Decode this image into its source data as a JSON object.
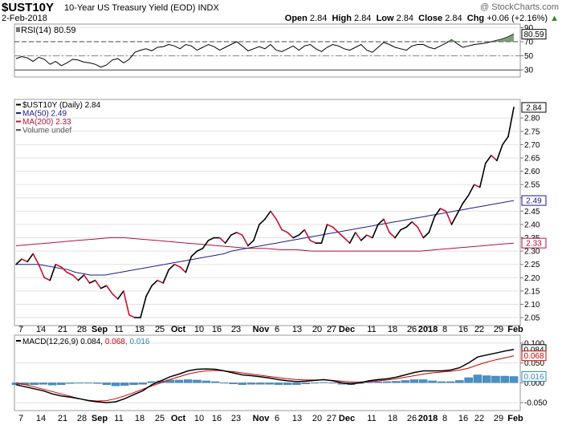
{
  "header": {
    "symbol": "$UST10Y",
    "description": "10-Year US Treasury Yield (EOD)",
    "exchange": "INDX",
    "watermark": "@ StockCharts.com",
    "date": "2-Feb-2018",
    "open_label": "Open",
    "open": "2.84",
    "high_label": "High",
    "high": "2.84",
    "low_label": "Low",
    "low": "2.84",
    "close_label": "Close",
    "close": "2.84",
    "chg_label": "Chg",
    "chg": "+0.06 (+2.16%)",
    "up_icon": "up-triangle-icon"
  },
  "rsi_panel": {
    "label": "RSI(14) 80.59",
    "last_value_box": "80.59",
    "ticks": [
      "90",
      "70",
      "50",
      "30"
    ]
  },
  "price_panel": {
    "legend": [
      {
        "text": "$UST10Y (Daily) 2.84",
        "color": "#000000"
      },
      {
        "text": "MA(50) 2.49",
        "color": "#1c1c8c"
      },
      {
        "text": "MA(200) 2.33",
        "color": "#b0123a"
      },
      {
        "text": "Volume undef",
        "color": "#555555"
      }
    ],
    "value_boxes": [
      {
        "text": "2.84",
        "value": 2.84,
        "color": "#000000"
      },
      {
        "text": "2.49",
        "value": 2.49,
        "color": "#1c1c8c"
      },
      {
        "text": "2.33",
        "value": 2.33,
        "color": "#b0123a"
      }
    ],
    "ticks": [
      "2.80",
      "2.75",
      "2.70",
      "2.65",
      "2.60",
      "2.55",
      "2.50",
      "2.45",
      "2.40",
      "2.35",
      "2.30",
      "2.25",
      "2.20",
      "2.15",
      "2.10",
      "2.05"
    ]
  },
  "macd_panel": {
    "label_prefix": "MACD(12,26,9)",
    "macd": "0.084",
    "signal": "0.068",
    "histogram": "0.016",
    "value_boxes": [
      {
        "text": "0.084",
        "value": 0.084,
        "color": "#000000"
      },
      {
        "text": "0.068",
        "value": 0.068,
        "color": "#cc0000"
      },
      {
        "text": "0.016",
        "value": 0.016,
        "color": "#2f86c0"
      }
    ],
    "ticks": [
      "0.100",
      "0.050",
      "0.000",
      "-0.050"
    ]
  },
  "x_axis": {
    "labels": [
      {
        "text": "7",
        "bold": false
      },
      {
        "text": "14",
        "bold": false
      },
      {
        "text": "21",
        "bold": false
      },
      {
        "text": "28",
        "bold": false
      },
      {
        "text": "Sep",
        "bold": true
      },
      {
        "text": "11",
        "bold": false
      },
      {
        "text": "18",
        "bold": false
      },
      {
        "text": "25",
        "bold": false
      },
      {
        "text": "Oct",
        "bold": true
      },
      {
        "text": "10",
        "bold": false
      },
      {
        "text": "16",
        "bold": false
      },
      {
        "text": "23",
        "bold": false
      },
      {
        "text": "Nov",
        "bold": true
      },
      {
        "text": "6",
        "bold": false
      },
      {
        "text": "13",
        "bold": false
      },
      {
        "text": "20",
        "bold": false
      },
      {
        "text": "27",
        "bold": false
      },
      {
        "text": "Dec",
        "bold": true
      },
      {
        "text": "11",
        "bold": false
      },
      {
        "text": "18",
        "bold": false
      },
      {
        "text": "26",
        "bold": false
      },
      {
        "text": "2018",
        "bold": true
      },
      {
        "text": "8",
        "bold": false
      },
      {
        "text": "16",
        "bold": false
      },
      {
        "text": "22",
        "bold": false
      },
      {
        "text": "29",
        "bold": false
      },
      {
        "text": "Feb",
        "bold": true
      }
    ]
  },
  "colors": {
    "price_up": "#000000",
    "price_down": "#c8102e",
    "ma50": "#1c1c8c",
    "ma200": "#b0123a",
    "macd": "#000000",
    "signal": "#cc0000",
    "histogram": "#4a90c2",
    "rsi": "#000000",
    "rsi_fill": "#5a8a5a",
    "grid": "#e2e2e2"
  },
  "chart_data": [
    {
      "type": "line",
      "panel": "RSI",
      "name": "RSI(14)",
      "ylim": [
        20,
        95
      ],
      "ref_lines": [
        70,
        30
      ],
      "values": [
        46,
        49,
        47,
        42,
        48,
        45,
        38,
        42,
        36,
        40,
        45,
        44,
        41,
        40,
        38,
        34,
        37,
        44,
        46,
        40,
        45,
        55,
        58,
        60,
        57,
        62,
        63,
        66,
        64,
        60,
        66,
        64,
        58,
        62,
        66,
        63,
        58,
        62,
        66,
        70,
        64,
        57,
        60,
        63,
        60,
        66,
        58,
        56,
        60,
        64,
        58,
        64,
        66,
        60,
        56,
        62,
        66,
        64,
        60,
        58,
        62,
        66,
        58,
        55,
        62,
        69,
        66,
        62,
        60,
        58,
        64,
        66,
        66,
        62,
        60,
        64,
        68,
        73,
        67,
        62,
        64,
        66,
        67,
        68,
        70,
        72,
        74,
        77,
        81
      ]
    },
    {
      "type": "line",
      "panel": "Price",
      "name": "$UST10Y",
      "ylim": [
        2.02,
        2.87
      ],
      "values": [
        2.25,
        2.27,
        2.26,
        2.29,
        2.25,
        2.2,
        2.19,
        2.25,
        2.24,
        2.22,
        2.21,
        2.19,
        2.21,
        2.18,
        2.19,
        2.16,
        2.17,
        2.14,
        2.12,
        2.15,
        2.06,
        2.05,
        2.05,
        2.13,
        2.17,
        2.19,
        2.18,
        2.23,
        2.25,
        2.24,
        2.22,
        2.28,
        2.3,
        2.31,
        2.34,
        2.35,
        2.35,
        2.33,
        2.36,
        2.37,
        2.36,
        2.32,
        2.34,
        2.4,
        2.42,
        2.45,
        2.42,
        2.38,
        2.37,
        2.35,
        2.36,
        2.38,
        2.34,
        2.33,
        2.33,
        2.4,
        2.39,
        2.37,
        2.35,
        2.33,
        2.37,
        2.34,
        2.36,
        2.35,
        2.4,
        2.42,
        2.37,
        2.35,
        2.38,
        2.39,
        2.41,
        2.39,
        2.35,
        2.37,
        2.43,
        2.46,
        2.45,
        2.4,
        2.44,
        2.48,
        2.51,
        2.55,
        2.54,
        2.63,
        2.66,
        2.64,
        2.7,
        2.73,
        2.84
      ]
    },
    {
      "type": "line",
      "panel": "Price",
      "name": "MA(50)",
      "values": [
        2.25,
        2.25,
        2.25,
        2.25,
        2.245,
        2.24,
        2.235,
        2.23,
        2.22,
        2.215,
        2.21,
        2.21,
        2.21,
        2.215,
        2.22,
        2.225,
        2.23,
        2.235,
        2.24,
        2.245,
        2.25,
        2.255,
        2.26,
        2.265,
        2.27,
        2.275,
        2.28,
        2.285,
        2.29,
        2.3,
        2.305,
        2.31,
        2.315,
        2.32,
        2.325,
        2.33,
        2.335,
        2.34,
        2.345,
        2.35,
        2.355,
        2.36,
        2.365,
        2.37,
        2.375,
        2.38,
        2.385,
        2.39,
        2.395,
        2.4,
        2.405,
        2.41,
        2.415,
        2.42,
        2.425,
        2.43,
        2.435,
        2.44,
        2.445,
        2.45,
        2.455,
        2.46,
        2.465,
        2.47,
        2.475,
        2.48,
        2.485,
        2.49
      ]
    },
    {
      "type": "line",
      "panel": "Price",
      "name": "MA(200)",
      "values": [
        2.32,
        2.325,
        2.33,
        2.335,
        2.34,
        2.345,
        2.35,
        2.35,
        2.345,
        2.34,
        2.335,
        2.33,
        2.325,
        2.32,
        2.315,
        2.31,
        2.31,
        2.305,
        2.305,
        2.3,
        2.3,
        2.3,
        2.3,
        2.3,
        2.3,
        2.3,
        2.3,
        2.305,
        2.31,
        2.315,
        2.32,
        2.325,
        2.33
      ]
    },
    {
      "type": "line",
      "panel": "MACD",
      "name": "MACD(12,26,9)",
      "ylim": [
        -0.07,
        0.12
      ],
      "values": [
        -0.005,
        -0.01,
        -0.015,
        -0.02,
        -0.028,
        -0.033,
        -0.036,
        -0.04,
        -0.045,
        -0.048,
        -0.05,
        -0.048,
        -0.04,
        -0.03,
        -0.02,
        -0.005,
        0.005,
        0.015,
        0.022,
        0.03,
        0.034,
        0.035,
        0.034,
        0.03,
        0.025,
        0.02,
        0.018,
        0.015,
        0.012,
        0.008,
        0.005,
        0.003,
        0.004,
        0.006,
        0.008,
        0.005,
        0.0,
        -0.003,
        0.0,
        0.005,
        0.008,
        0.01,
        0.014,
        0.02,
        0.026,
        0.03,
        0.03,
        0.03,
        0.032,
        0.038,
        0.05,
        0.065,
        0.07,
        0.075,
        0.08,
        0.084
      ]
    },
    {
      "type": "line",
      "panel": "MACD",
      "name": "Signal",
      "values": [
        0.0,
        -0.005,
        -0.01,
        -0.016,
        -0.022,
        -0.028,
        -0.034,
        -0.04,
        -0.044,
        -0.046,
        -0.045,
        -0.04,
        -0.033,
        -0.025,
        -0.016,
        -0.008,
        0.0,
        0.008,
        0.015,
        0.022,
        0.027,
        0.03,
        0.031,
        0.03,
        0.028,
        0.025,
        0.022,
        0.019,
        0.016,
        0.013,
        0.01,
        0.008,
        0.007,
        0.007,
        0.007,
        0.006,
        0.004,
        0.002,
        0.002,
        0.003,
        0.005,
        0.007,
        0.01,
        0.014,
        0.018,
        0.022,
        0.025,
        0.027,
        0.029,
        0.032,
        0.037,
        0.045,
        0.052,
        0.058,
        0.063,
        0.068
      ]
    },
    {
      "type": "bar",
      "panel": "MACD",
      "name": "Histogram",
      "values": [
        -0.005,
        -0.005,
        -0.005,
        -0.004,
        -0.006,
        -0.005,
        -0.002,
        0.0,
        -0.001,
        -0.002,
        -0.005,
        -0.008,
        -0.007,
        -0.005,
        -0.004,
        0.003,
        0.005,
        0.007,
        0.007,
        0.008,
        0.007,
        0.005,
        0.003,
        0.0,
        -0.003,
        -0.005,
        -0.004,
        -0.004,
        -0.004,
        -0.005,
        -0.005,
        -0.005,
        -0.003,
        -0.001,
        0.001,
        -0.001,
        -0.004,
        -0.005,
        -0.002,
        0.002,
        0.003,
        0.003,
        0.004,
        0.006,
        0.008,
        0.008,
        0.005,
        0.003,
        0.003,
        0.006,
        0.013,
        0.02,
        0.018,
        0.017,
        0.017,
        0.016
      ]
    }
  ]
}
